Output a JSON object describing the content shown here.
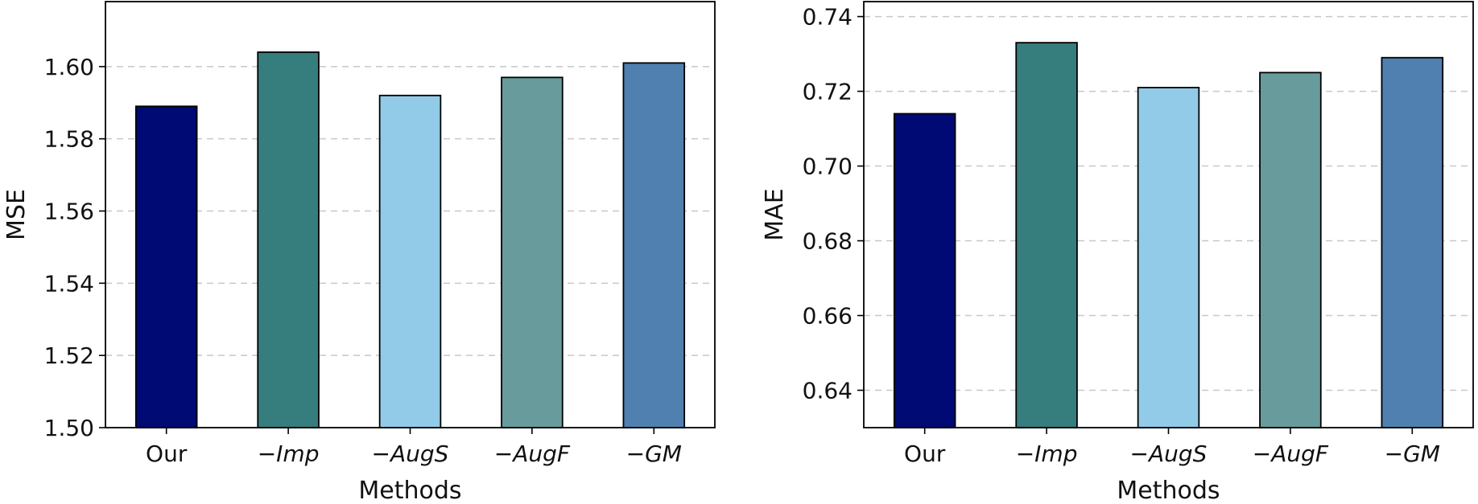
{
  "chart_data": [
    {
      "type": "bar",
      "title": "",
      "xlabel": "Methods",
      "ylabel": "MSE",
      "categories": [
        "Our",
        "−Imp",
        "−AugS",
        "−AugF",
        "−GM"
      ],
      "category_style": [
        "normal",
        "italic",
        "italic",
        "italic",
        "italic"
      ],
      "values": [
        1.589,
        1.604,
        1.592,
        1.597,
        1.601
      ],
      "colors": [
        "#000a75",
        "#367d7d",
        "#92cbe8",
        "#689c9c",
        "#5080b0"
      ],
      "ylim": [
        1.5,
        1.618
      ],
      "yticks": [
        "1.50",
        "1.52",
        "1.54",
        "1.56",
        "1.58",
        "1.60"
      ],
      "grid": true
    },
    {
      "type": "bar",
      "title": "",
      "xlabel": "Methods",
      "ylabel": "MAE",
      "categories": [
        "Our",
        "−Imp",
        "−AugS",
        "−AugF",
        "−GM"
      ],
      "category_style": [
        "normal",
        "italic",
        "italic",
        "italic",
        "italic"
      ],
      "values": [
        0.714,
        0.733,
        0.721,
        0.725,
        0.729
      ],
      "colors": [
        "#000a75",
        "#367d7d",
        "#92cbe8",
        "#689c9c",
        "#5080b0"
      ],
      "ylim": [
        0.63,
        0.744
      ],
      "yticks": [
        "0.64",
        "0.66",
        "0.68",
        "0.70",
        "0.72",
        "0.74"
      ],
      "grid": true
    }
  ]
}
